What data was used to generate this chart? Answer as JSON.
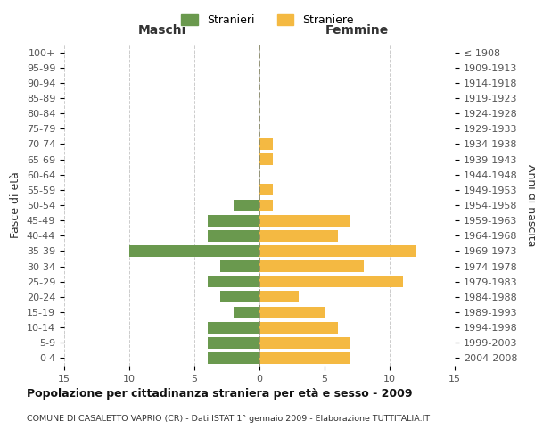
{
  "age_groups": [
    "0-4",
    "5-9",
    "10-14",
    "15-19",
    "20-24",
    "25-29",
    "30-34",
    "35-39",
    "40-44",
    "45-49",
    "50-54",
    "55-59",
    "60-64",
    "65-69",
    "70-74",
    "75-79",
    "80-84",
    "85-89",
    "90-94",
    "95-99",
    "100+"
  ],
  "birth_years": [
    "2004-2008",
    "1999-2003",
    "1994-1998",
    "1989-1993",
    "1984-1988",
    "1979-1983",
    "1974-1978",
    "1969-1973",
    "1964-1968",
    "1959-1963",
    "1954-1958",
    "1949-1953",
    "1944-1948",
    "1939-1943",
    "1934-1938",
    "1929-1933",
    "1924-1928",
    "1919-1923",
    "1914-1918",
    "1909-1913",
    "≤ 1908"
  ],
  "maschi": [
    4,
    4,
    4,
    2,
    3,
    4,
    3,
    10,
    4,
    4,
    2,
    0,
    0,
    0,
    0,
    0,
    0,
    0,
    0,
    0,
    0
  ],
  "femmine": [
    7,
    7,
    6,
    5,
    3,
    11,
    8,
    12,
    6,
    7,
    1,
    1,
    0,
    1,
    1,
    0,
    0,
    0,
    0,
    0,
    0
  ],
  "maschi_color": "#6a994e",
  "femmine_color": "#f4b942",
  "title": "Popolazione per cittadinanza straniera per età e sesso - 2009",
  "subtitle": "COMUNE DI CASALETTO VAPRIO (CR) - Dati ISTAT 1° gennaio 2009 - Elaborazione TUTTITALIA.IT",
  "legend_maschi": "Stranieri",
  "legend_femmine": "Straniere",
  "xlabel_left": "Maschi",
  "xlabel_right": "Femmine",
  "ylabel_left": "Fasce di età",
  "ylabel_right": "Anni di nascita",
  "xlim": 15,
  "background_color": "#ffffff",
  "grid_color": "#cccccc"
}
